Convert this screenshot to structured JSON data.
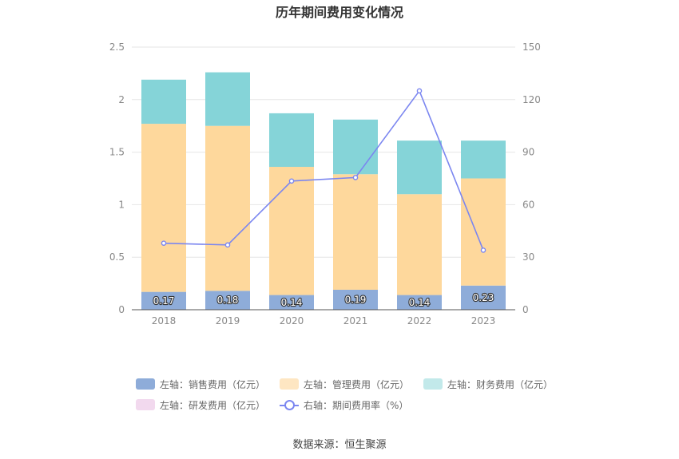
{
  "chart_data": {
    "type": "bar",
    "title": "历年期间费用变化情况",
    "categories": [
      "2018",
      "2019",
      "2020",
      "2021",
      "2022",
      "2023"
    ],
    "left_axis": {
      "ylim": [
        0,
        2.5
      ],
      "ticks": [
        "0",
        "0.5",
        "1",
        "1.5",
        "2",
        "2.5"
      ]
    },
    "right_axis": {
      "ylim": [
        0,
        150
      ],
      "ticks": [
        "0",
        "30",
        "60",
        "90",
        "120",
        "150"
      ]
    },
    "grid": true,
    "legend_position": "bottom",
    "series": [
      {
        "name": "左轴：销售费用（亿元）",
        "type": "bar",
        "axis": "left",
        "color": "#8eacd9",
        "values": [
          0.17,
          0.18,
          0.14,
          0.19,
          0.14,
          0.23
        ],
        "labels": [
          "0.17",
          "0.18",
          "0.14",
          "0.19",
          "0.14",
          "0.23"
        ]
      },
      {
        "name": "左轴：管理费用（亿元）",
        "type": "bar",
        "axis": "left",
        "color": "#fed89c",
        "values": [
          1.6,
          1.57,
          1.22,
          1.1,
          0.96,
          1.02
        ]
      },
      {
        "name": "左轴：财务费用（亿元）",
        "type": "bar",
        "axis": "left",
        "color": "#85d4d8",
        "values": [
          0.42,
          0.51,
          0.51,
          0.52,
          0.51,
          0.36
        ]
      },
      {
        "name": "左轴：研发费用（亿元）",
        "type": "bar",
        "axis": "left",
        "color": "#f2d9ee",
        "values": [
          0,
          0,
          0,
          0,
          0,
          0
        ]
      },
      {
        "name": "右轴：期间费用率（%）",
        "type": "line",
        "axis": "right",
        "color": "#7b86f0",
        "values": [
          38,
          37,
          73.5,
          75.5,
          125,
          34
        ]
      }
    ],
    "legend_colors": [
      "#8eacd9",
      "#fee6c2",
      "#c2e9ea",
      "#f2d9ee"
    ]
  },
  "source": "数据来源：恒生聚源"
}
